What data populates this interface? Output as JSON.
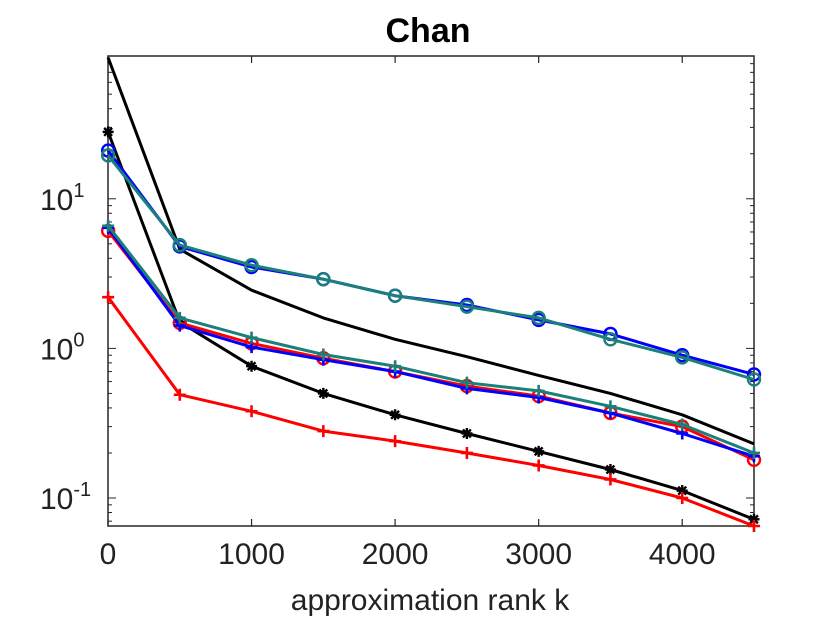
{
  "chart_data": {
    "type": "line",
    "title": "Chan",
    "xlabel": "approximation rank k",
    "ylabel": "",
    "xlim": [
      0,
      4500
    ],
    "ylim": [
      0.065,
      90
    ],
    "yscale": "log",
    "grid": false,
    "x": [
      1,
      500,
      1000,
      1500,
      2000,
      2500,
      3000,
      3500,
      4000,
      4500
    ],
    "x_ticks": [
      {
        "value": 0,
        "label": "0"
      },
      {
        "value": 1000,
        "label": "1000"
      },
      {
        "value": 2000,
        "label": "2000"
      },
      {
        "value": 3000,
        "label": "3000"
      },
      {
        "value": 4000,
        "label": "4000"
      }
    ],
    "y_ticks": [
      {
        "value": 10,
        "base": "10",
        "exp": "1"
      },
      {
        "value": 1,
        "base": "10",
        "exp": "0"
      },
      {
        "value": 0.1,
        "base": "10",
        "exp": "-1"
      }
    ],
    "series": [
      {
        "name": "black-top",
        "color": "#000000",
        "marker": "none",
        "x": [
          1,
          500,
          1000,
          1500,
          2000,
          2500,
          3000,
          3500,
          4000,
          4500
        ],
        "values": [
          88,
          4.6,
          2.45,
          1.6,
          1.15,
          0.88,
          0.66,
          0.5,
          0.36,
          0.23
        ]
      },
      {
        "name": "black-star",
        "color": "#000000",
        "marker": "star",
        "x": [
          1,
          500,
          1000,
          1500,
          2000,
          2500,
          3000,
          3500,
          4000,
          4500
        ],
        "values": [
          28,
          1.5,
          0.76,
          0.5,
          0.36,
          0.27,
          0.205,
          0.155,
          0.112,
          0.072
        ]
      },
      {
        "name": "blue-circle",
        "color": "#0000ff",
        "marker": "circle",
        "x": [
          1,
          500,
          1000,
          1500,
          2000,
          2500,
          3000,
          3500,
          4000,
          4500
        ],
        "values": [
          21,
          4.8,
          3.5,
          2.9,
          2.25,
          1.95,
          1.55,
          1.25,
          0.9,
          0.67
        ]
      },
      {
        "name": "teal-circle",
        "color": "#1b7f7a",
        "marker": "circle",
        "x": [
          1,
          500,
          1000,
          1500,
          2000,
          2500,
          3000,
          3500,
          4000,
          4500
        ],
        "values": [
          19.5,
          4.9,
          3.6,
          2.9,
          2.25,
          1.9,
          1.6,
          1.15,
          0.87,
          0.62
        ]
      },
      {
        "name": "red-circle",
        "color": "#ff0000",
        "marker": "circle",
        "x": [
          1,
          500,
          1000,
          1500,
          2000,
          2500,
          3000,
          3500,
          4000,
          4500
        ],
        "values": [
          6.1,
          1.48,
          1.08,
          0.86,
          0.7,
          0.56,
          0.48,
          0.37,
          0.3,
          0.18
        ]
      },
      {
        "name": "blue-plus",
        "color": "#0000ff",
        "marker": "plus",
        "x": [
          1,
          500,
          1000,
          1500,
          2000,
          2500,
          3000,
          3500,
          4000,
          4500
        ],
        "values": [
          6.4,
          1.42,
          1.02,
          0.84,
          0.7,
          0.54,
          0.47,
          0.37,
          0.27,
          0.19
        ]
      },
      {
        "name": "teal-plus",
        "color": "#1b7f7a",
        "marker": "plus",
        "x": [
          1,
          500,
          1000,
          1500,
          2000,
          2500,
          3000,
          3500,
          4000,
          4500
        ],
        "values": [
          6.6,
          1.6,
          1.18,
          0.91,
          0.76,
          0.59,
          0.52,
          0.41,
          0.31,
          0.2
        ]
      },
      {
        "name": "red-plus",
        "color": "#ff0000",
        "marker": "plus",
        "x": [
          1,
          500,
          1000,
          1500,
          2000,
          2500,
          3000,
          3500,
          4000,
          4500
        ],
        "values": [
          2.2,
          0.49,
          0.38,
          0.28,
          0.24,
          0.2,
          0.165,
          0.133,
          0.1,
          0.065
        ]
      }
    ]
  }
}
